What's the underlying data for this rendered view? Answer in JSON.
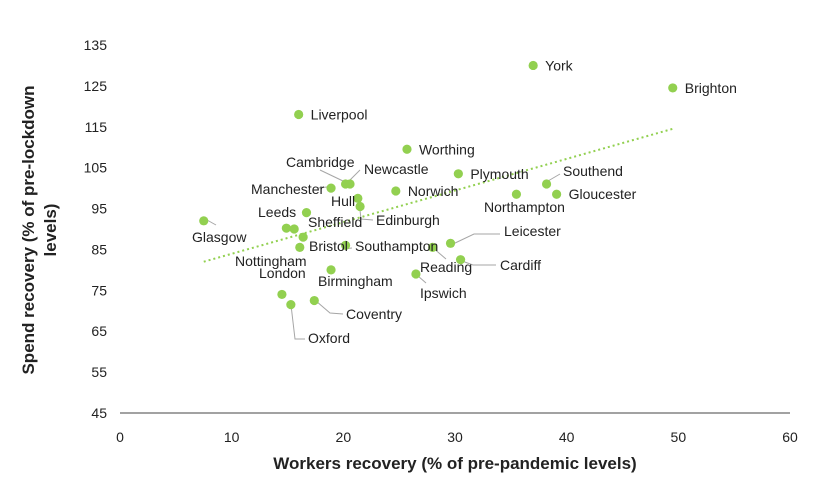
{
  "chart_data": {
    "type": "scatter",
    "xlabel": "Workers recovery (% of pre-pandemic levels)",
    "ylabel": "Spend recovery (% of pre-lockdown levels)",
    "xlim": [
      0,
      60
    ],
    "ylim": [
      45,
      135
    ],
    "x_ticks": [
      0,
      10,
      20,
      30,
      40,
      50,
      60
    ],
    "y_ticks": [
      45,
      55,
      65,
      75,
      85,
      95,
      105,
      115,
      125,
      135
    ],
    "grid": false,
    "legend": "none",
    "marker_color": "#92d050",
    "trendline": {
      "style": "dotted",
      "color": "#92d050",
      "from": [
        7.5,
        82
      ],
      "to": [
        49.5,
        114.5
      ]
    },
    "points": [
      {
        "name": "York",
        "x": 37,
        "y": 130
      },
      {
        "name": "Brighton",
        "x": 49.5,
        "y": 124.5
      },
      {
        "name": "Liverpool",
        "x": 16,
        "y": 118
      },
      {
        "name": "Worthing",
        "x": 25.7,
        "y": 109.5
      },
      {
        "name": "Plymouth",
        "x": 30.3,
        "y": 103.5
      },
      {
        "name": "Southend",
        "x": 38.2,
        "y": 101
      },
      {
        "name": "Gloucester",
        "x": 39.1,
        "y": 98.5
      },
      {
        "name": "Northampton",
        "x": 35.5,
        "y": 98.5
      },
      {
        "name": "Cambridge",
        "x": 20.2,
        "y": 101
      },
      {
        "name": "Newcastle",
        "x": 20.6,
        "y": 101
      },
      {
        "name": "Manchester",
        "x": 18.9,
        "y": 100
      },
      {
        "name": "Norwich",
        "x": 24.7,
        "y": 99.3
      },
      {
        "name": "Hull",
        "x": 21.3,
        "y": 97.5
      },
      {
        "name": "Edinburgh",
        "x": 21.5,
        "y": 95.5
      },
      {
        "name": "Leeds",
        "x": 16.7,
        "y": 94
      },
      {
        "name": "Glasgow",
        "x": 7.5,
        "y": 92
      },
      {
        "name": "Sheffield",
        "x": 15.6,
        "y": 90
      },
      {
        "name": "Bristol",
        "x": 16.4,
        "y": 88
      },
      {
        "name": "Nottingham",
        "x": 16.1,
        "y": 85.5
      },
      {
        "name": "Southampton",
        "x": 20.2,
        "y": 86
      },
      {
        "name": "Leicester",
        "x": 29.6,
        "y": 86.5
      },
      {
        "name": "Reading",
        "x": 28,
        "y": 85.5
      },
      {
        "name": "Cardiff",
        "x": 30.5,
        "y": 82.5
      },
      {
        "name": "Birmingham",
        "x": 18.9,
        "y": 80
      },
      {
        "name": "Ipswich",
        "x": 26.5,
        "y": 79
      },
      {
        "name": "London",
        "x": 14.5,
        "y": 74
      },
      {
        "name": "Oxford",
        "x": 15.3,
        "y": 71.5
      },
      {
        "name": "Coventry",
        "x": 17.4,
        "y": 72.5
      },
      {
        "name": "Unlabelled",
        "x": 14.9,
        "y": 90.2
      }
    ],
    "labels": [
      {
        "text": "York",
        "point": "York"
      },
      {
        "text": "Brighton",
        "point": "Brighton"
      },
      {
        "text": "Liverpool",
        "point": "Liverpool"
      },
      {
        "text": "Worthing",
        "point": "Worthing"
      },
      {
        "text": "Plymouth",
        "point": "Plymouth"
      },
      {
        "text": "Southend",
        "point": "Southend"
      },
      {
        "text": "Gloucester",
        "point": "Gloucester"
      },
      {
        "text": "Northampton",
        "point": "Northampton"
      },
      {
        "text": "Cambridge",
        "point": "Cambridge"
      },
      {
        "text": "Newcastle",
        "point": "Newcastle"
      },
      {
        "text": "Manchester",
        "point": "Manchester"
      },
      {
        "text": "Norwich",
        "point": "Norwich"
      },
      {
        "text": "Hull",
        "point": "Hull"
      },
      {
        "text": "Edinburgh",
        "point": "Edinburgh"
      },
      {
        "text": "Leeds",
        "point": "Leeds"
      },
      {
        "text": "Glasgow",
        "point": "Glasgow"
      },
      {
        "text": "Sheffield",
        "point": "Sheffield"
      },
      {
        "text": "Bristol",
        "point": "Bristol"
      },
      {
        "text": "Nottingham",
        "point": "Nottingham"
      },
      {
        "text": "Southampton",
        "point": "Southampton"
      },
      {
        "text": "Leicester",
        "point": "Leicester"
      },
      {
        "text": "Reading",
        "point": "Reading"
      },
      {
        "text": "Cardiff",
        "point": "Cardiff"
      },
      {
        "text": "Birmingham",
        "point": "Birmingham"
      },
      {
        "text": "Ipswich",
        "point": "Ipswich"
      },
      {
        "text": "London",
        "point": "London"
      },
      {
        "text": "Oxford",
        "point": "Oxford"
      },
      {
        "text": "Coventry",
        "point": "Coventry"
      }
    ]
  }
}
